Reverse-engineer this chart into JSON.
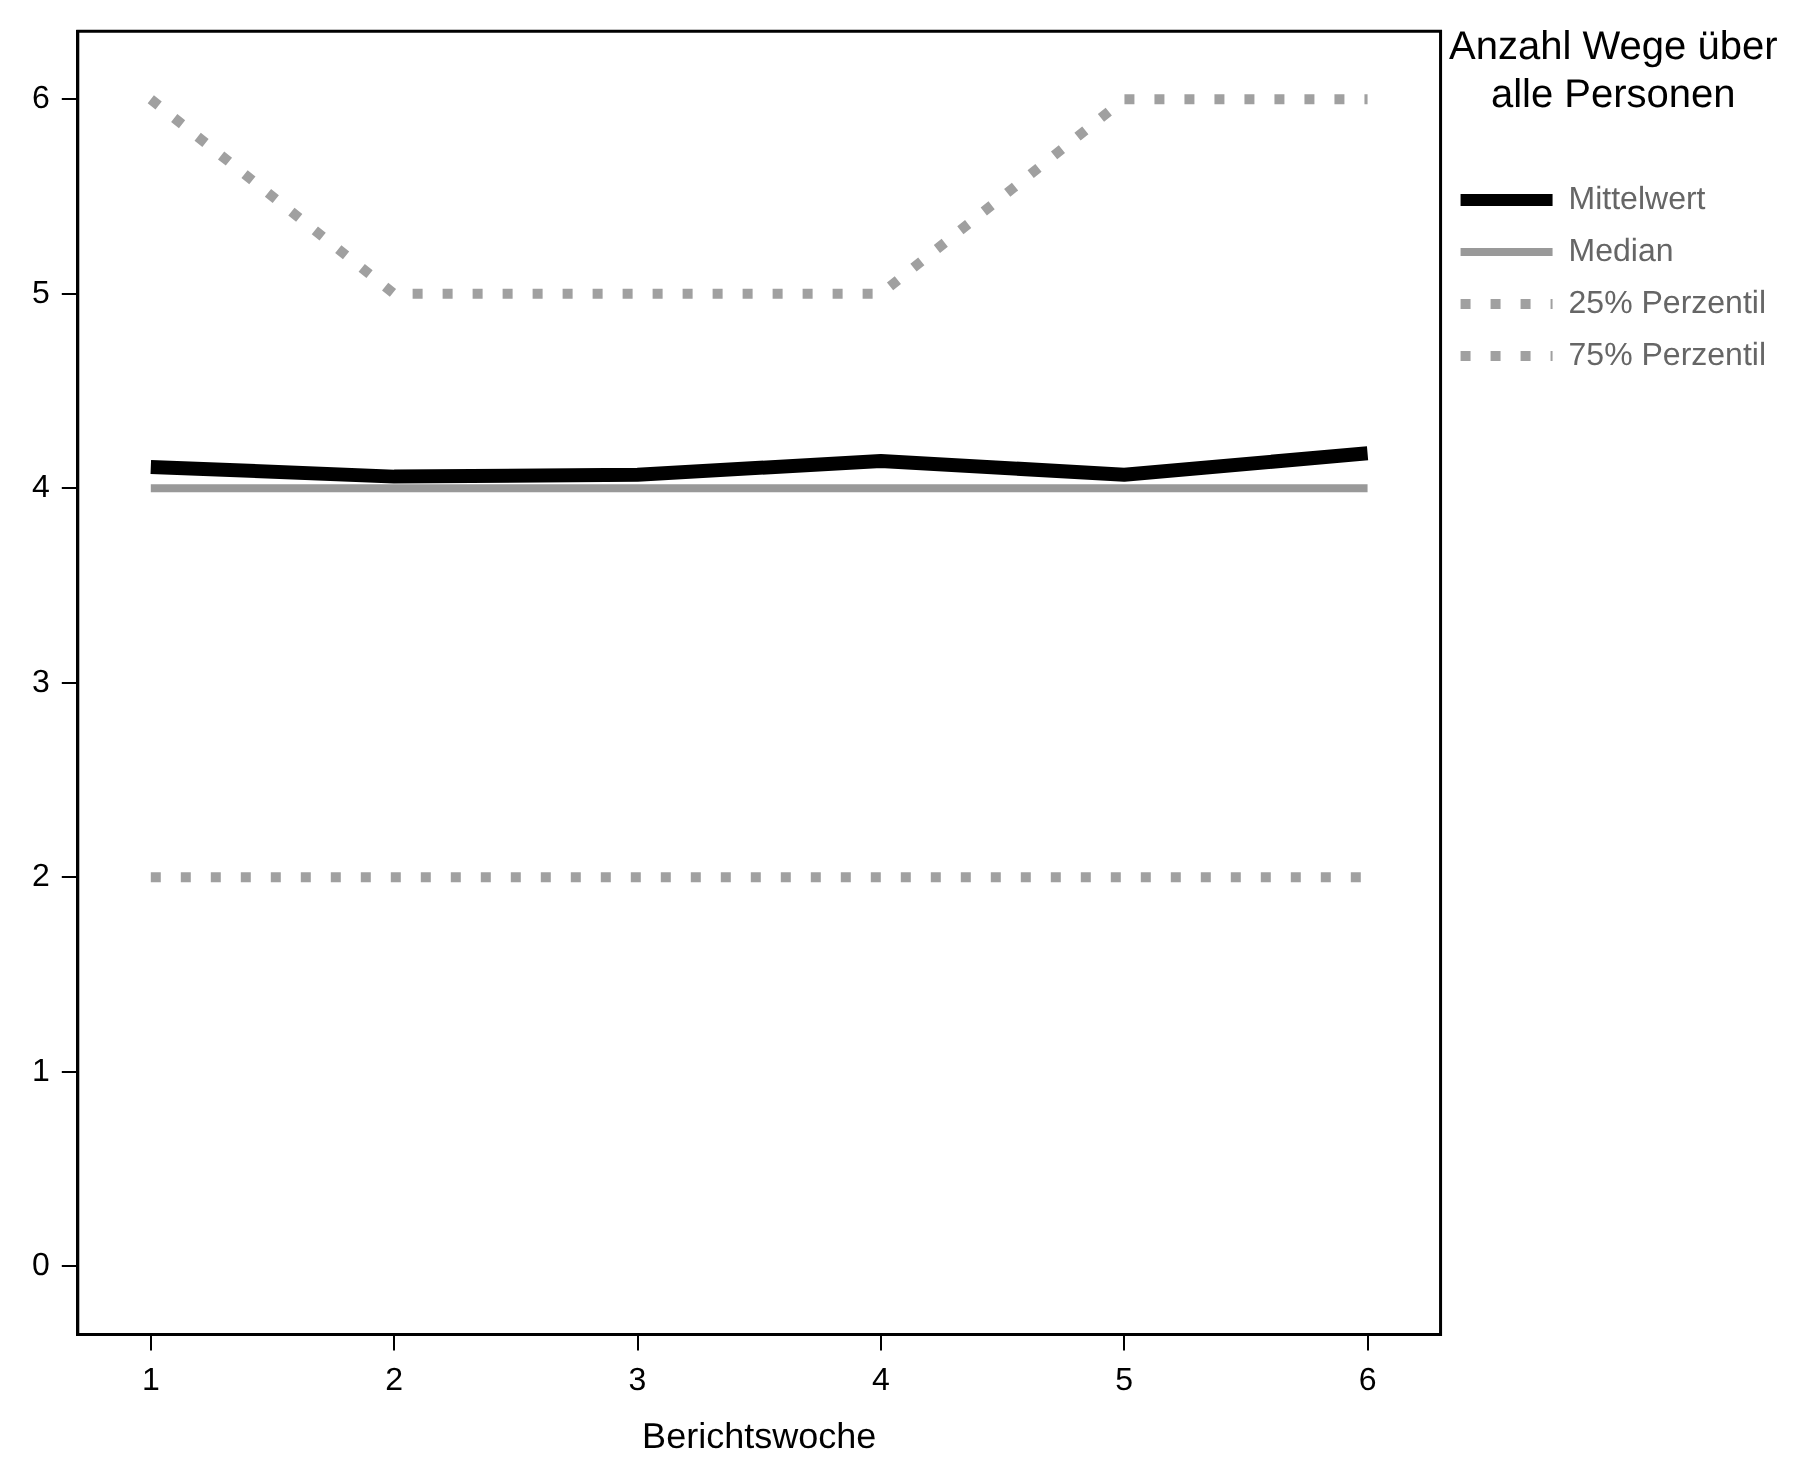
{
  "chart_data": {
    "type": "line",
    "xlabel": "Berichtswoche",
    "legend_title": "Anzahl Wege über alle Personen",
    "x": [
      1,
      2,
      3,
      4,
      5,
      6
    ],
    "xlim": [
      0.7,
      6.3
    ],
    "xticks": [
      1,
      2,
      3,
      4,
      5,
      6
    ],
    "ylim": [
      -0.35,
      6.35
    ],
    "yticks": [
      0,
      1,
      2,
      3,
      4,
      5,
      6
    ],
    "grid": false,
    "legend": "right",
    "marker": "none",
    "series": [
      {
        "name": "Mittelwert",
        "color": "#000000",
        "line_style": "solid",
        "values": [
          4.11,
          4.06,
          4.07,
          4.14,
          4.07,
          4.18
        ]
      },
      {
        "name": "Median",
        "color": "#999999",
        "line_style": "solid",
        "values": [
          4,
          4,
          4,
          4,
          4,
          4
        ]
      },
      {
        "name": "25% Perzentil",
        "color": "#a0a0a0",
        "line_style": "dotted",
        "values": [
          2,
          2,
          2,
          2,
          2,
          2
        ]
      },
      {
        "name": "75% Perzentil",
        "color": "#a0a0a0",
        "line_style": "dotted",
        "values": [
          6,
          5,
          5,
          5,
          6,
          6
        ]
      }
    ]
  }
}
